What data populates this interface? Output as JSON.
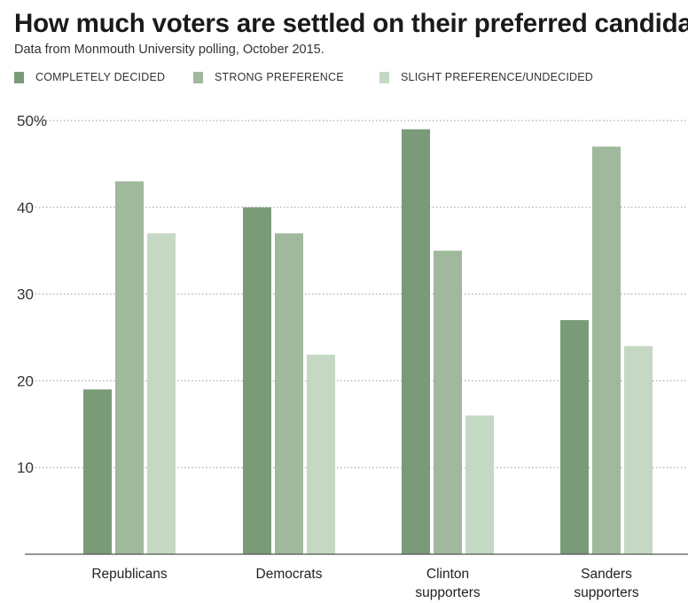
{
  "chart_data": {
    "type": "bar",
    "title": "How much voters are settled on their preferred candidate",
    "subtitle": "Data from Monmouth University polling, October 2015.",
    "categories": [
      [
        "Republicans"
      ],
      [
        "Democrats"
      ],
      [
        "Clinton",
        "supporters"
      ],
      [
        "Sanders",
        "supporters"
      ]
    ],
    "series": [
      {
        "name": "COMPLETELY DECIDED",
        "color": "#7a9b78",
        "values": [
          19,
          40,
          49,
          27
        ]
      },
      {
        "name": "STRONG PREFERENCE",
        "color": "#a0b89c",
        "values": [
          43,
          37,
          35,
          47
        ]
      },
      {
        "name": "SLIGHT PREFERENCE/UNDECIDED",
        "color": "#c5d8c3",
        "values": [
          37,
          23,
          16,
          24
        ]
      }
    ],
    "yticks": [
      {
        "value": 10,
        "label": "10"
      },
      {
        "value": 20,
        "label": "20"
      },
      {
        "value": 30,
        "label": "30"
      },
      {
        "value": 40,
        "label": "40"
      },
      {
        "value": 50,
        "label": "50%"
      }
    ],
    "ylim": [
      0,
      50
    ],
    "grid": true,
    "legend_position": "top",
    "xlabel": "",
    "ylabel": ""
  }
}
